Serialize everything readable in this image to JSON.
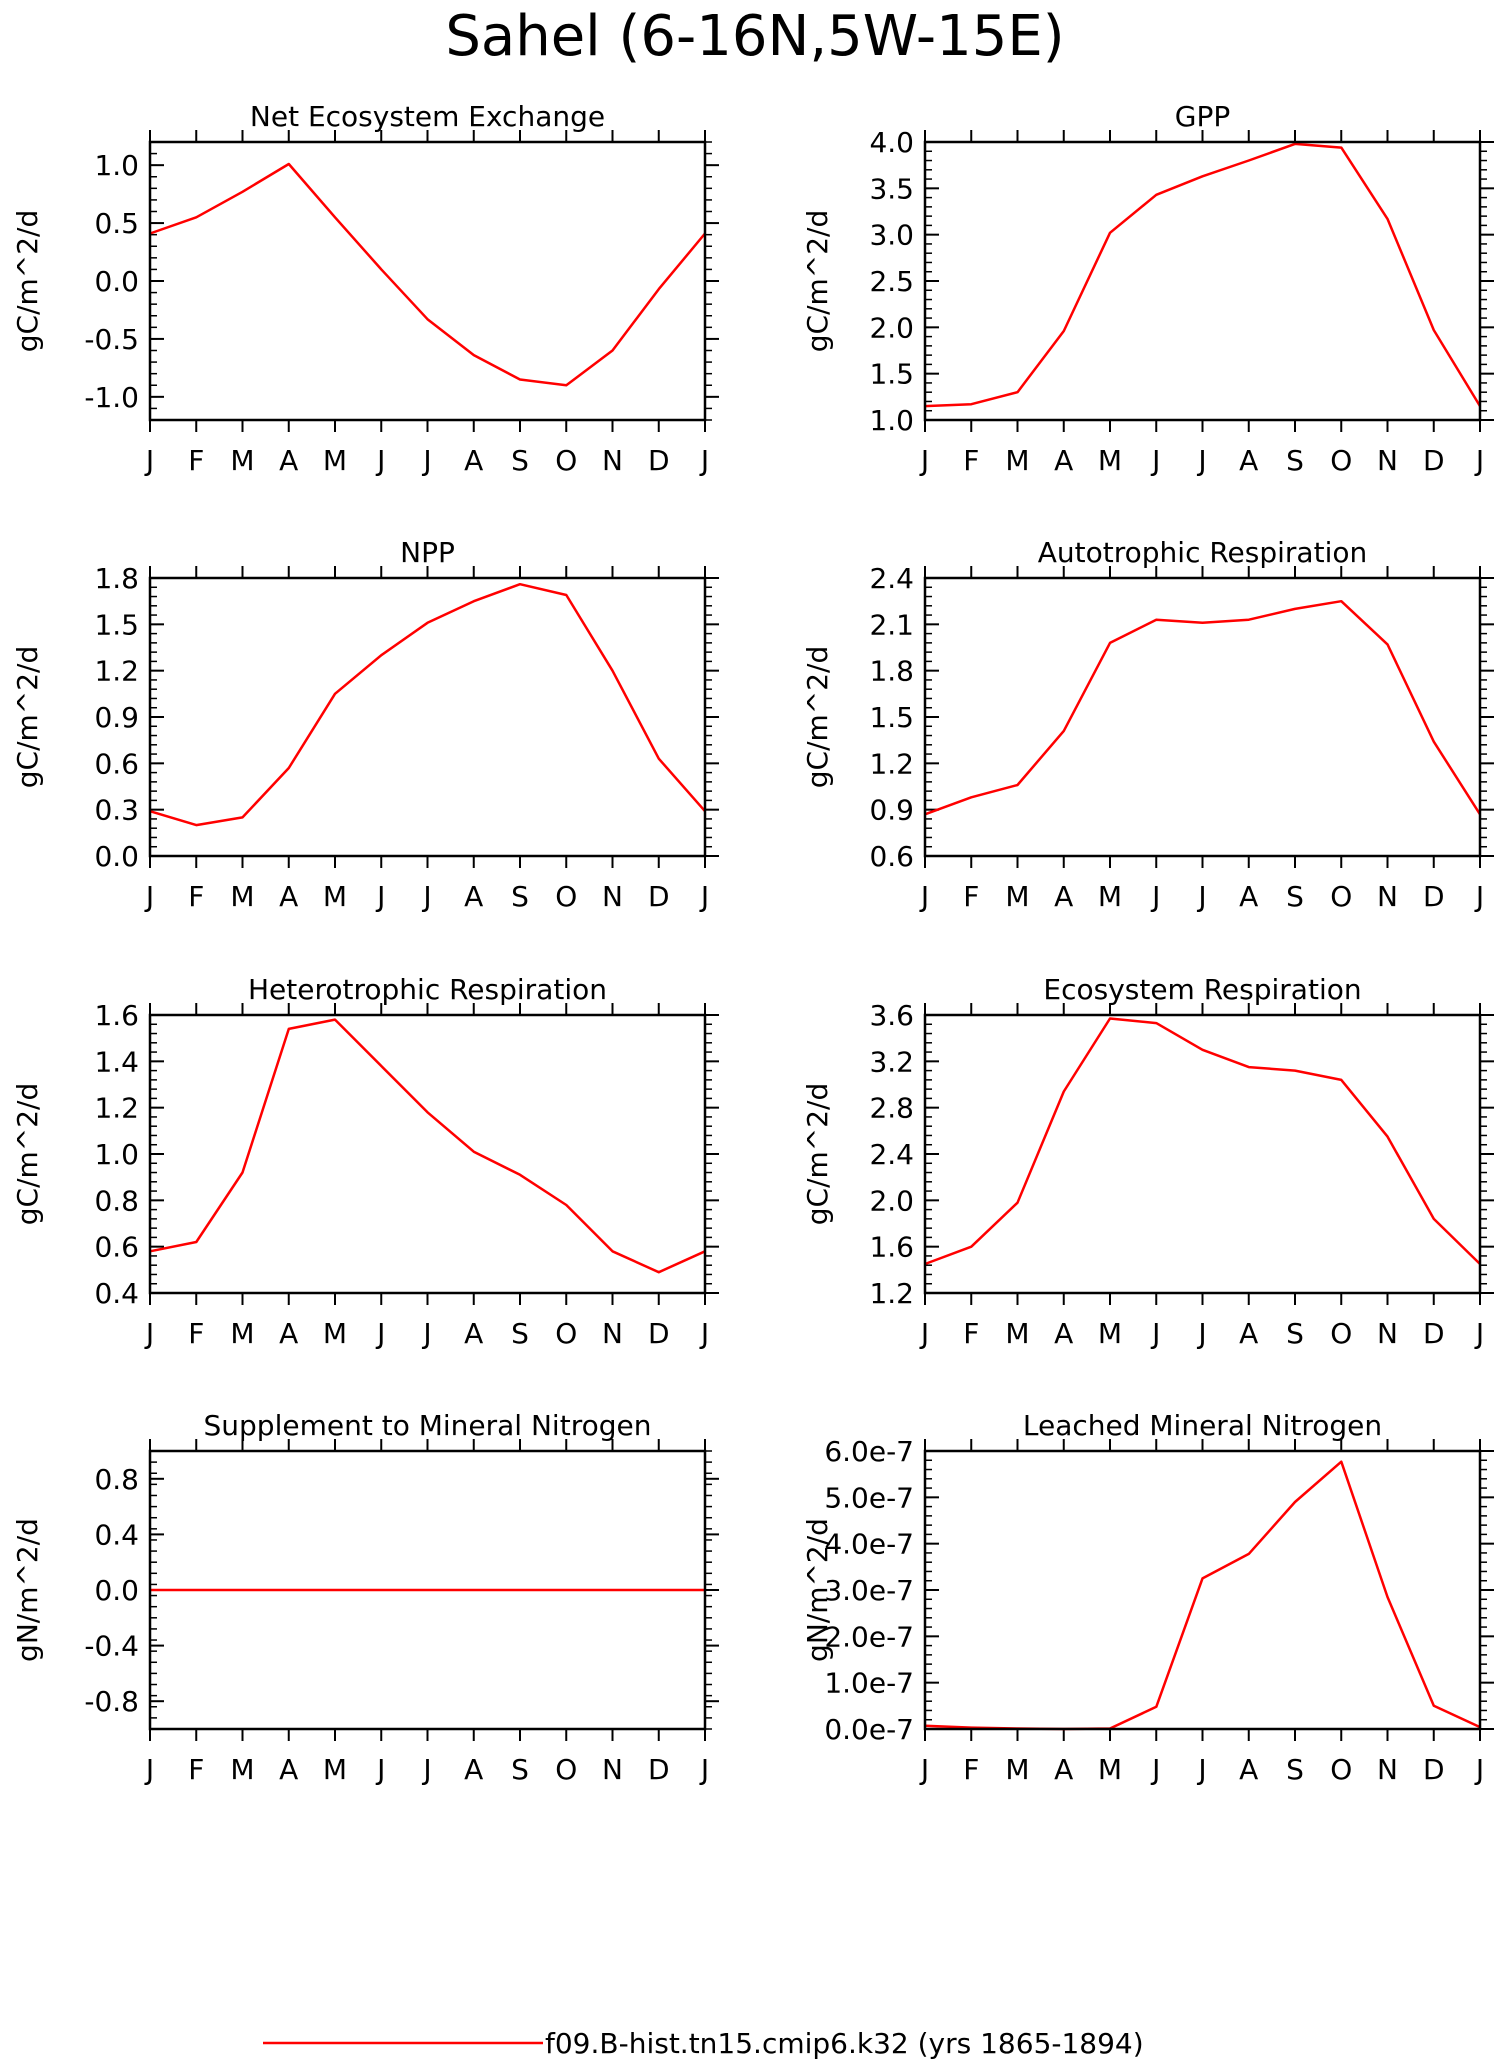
{
  "title": "Sahel (6-16N,5W-15E)",
  "legend": {
    "label": "f09.B-hist.tn15.cmip6.k32 (yrs 1865-1894)",
    "color": "#ff0000"
  },
  "chart_data": [
    {
      "type": "line",
      "title": "Net Ecosystem Exchange",
      "ylabel": "gC/m^2/d",
      "categories": [
        "J",
        "F",
        "M",
        "A",
        "M",
        "J",
        "J",
        "A",
        "S",
        "O",
        "N",
        "D",
        "J"
      ],
      "ylim": [
        -1.2,
        1.2
      ],
      "yticks": [
        "1.0",
        "0.5",
        "0.0",
        "-0.5",
        "-1.0"
      ],
      "ytick_values": [
        1.0,
        0.5,
        0.0,
        -0.5,
        -1.0
      ],
      "values": [
        0.41,
        0.55,
        0.77,
        1.01,
        0.55,
        0.1,
        -0.33,
        -0.64,
        -0.85,
        -0.9,
        -0.6,
        -0.07,
        0.41
      ]
    },
    {
      "type": "line",
      "title": "GPP",
      "ylabel": "gC/m^2/d",
      "categories": [
        "J",
        "F",
        "M",
        "A",
        "M",
        "J",
        "J",
        "A",
        "S",
        "O",
        "N",
        "D",
        "J"
      ],
      "ylim": [
        1.0,
        4.0
      ],
      "yticks": [
        "4.0",
        "3.5",
        "3.0",
        "2.5",
        "2.0",
        "1.5",
        "1.0"
      ],
      "ytick_values": [
        4.0,
        3.5,
        3.0,
        2.5,
        2.0,
        1.5,
        1.0
      ],
      "values": [
        1.15,
        1.17,
        1.3,
        1.96,
        3.02,
        3.43,
        3.63,
        3.8,
        3.98,
        3.94,
        3.17,
        1.97,
        1.15
      ]
    },
    {
      "type": "line",
      "title": "NPP",
      "ylabel": "gC/m^2/d",
      "categories": [
        "J",
        "F",
        "M",
        "A",
        "M",
        "J",
        "J",
        "A",
        "S",
        "O",
        "N",
        "D",
        "J"
      ],
      "ylim": [
        0.0,
        1.8
      ],
      "yticks": [
        "1.8",
        "1.5",
        "1.2",
        "0.9",
        "0.6",
        "0.3",
        "0.0"
      ],
      "ytick_values": [
        1.8,
        1.5,
        1.2,
        0.9,
        0.6,
        0.3,
        0.0
      ],
      "values": [
        0.29,
        0.2,
        0.25,
        0.57,
        1.05,
        1.3,
        1.51,
        1.65,
        1.76,
        1.69,
        1.2,
        0.63,
        0.29
      ]
    },
    {
      "type": "line",
      "title": "Autotrophic Respiration",
      "ylabel": "gC/m^2/d",
      "categories": [
        "J",
        "F",
        "M",
        "A",
        "M",
        "J",
        "J",
        "A",
        "S",
        "O",
        "N",
        "D",
        "J"
      ],
      "ylim": [
        0.6,
        2.4
      ],
      "yticks": [
        "2.4",
        "2.1",
        "1.8",
        "1.5",
        "1.2",
        "0.9",
        "0.6"
      ],
      "ytick_values": [
        2.4,
        2.1,
        1.8,
        1.5,
        1.2,
        0.9,
        0.6
      ],
      "values": [
        0.87,
        0.98,
        1.06,
        1.41,
        1.98,
        2.13,
        2.11,
        2.13,
        2.2,
        2.25,
        1.97,
        1.34,
        0.87
      ]
    },
    {
      "type": "line",
      "title": "Heterotrophic Respiration",
      "ylabel": "gC/m^2/d",
      "categories": [
        "J",
        "F",
        "M",
        "A",
        "M",
        "J",
        "J",
        "A",
        "S",
        "O",
        "N",
        "D",
        "J"
      ],
      "ylim": [
        0.4,
        1.6
      ],
      "yticks": [
        "1.6",
        "1.4",
        "1.2",
        "1.0",
        "0.8",
        "0.6",
        "0.4"
      ],
      "ytick_values": [
        1.6,
        1.4,
        1.2,
        1.0,
        0.8,
        0.6,
        0.4
      ],
      "values": [
        0.58,
        0.62,
        0.92,
        1.54,
        1.58,
        1.38,
        1.18,
        1.01,
        0.91,
        0.78,
        0.58,
        0.49,
        0.58
      ]
    },
    {
      "type": "line",
      "title": "Ecosystem Respiration",
      "ylabel": "gC/m^2/d",
      "categories": [
        "J",
        "F",
        "M",
        "A",
        "M",
        "J",
        "J",
        "A",
        "S",
        "O",
        "N",
        "D",
        "J"
      ],
      "ylim": [
        1.2,
        3.6
      ],
      "yticks": [
        "3.6",
        "3.2",
        "2.8",
        "2.4",
        "2.0",
        "1.6",
        "1.2"
      ],
      "ytick_values": [
        3.6,
        3.2,
        2.8,
        2.4,
        2.0,
        1.6,
        1.2
      ],
      "values": [
        1.45,
        1.6,
        1.98,
        2.94,
        3.57,
        3.53,
        3.3,
        3.15,
        3.12,
        3.04,
        2.55,
        1.84,
        1.45
      ]
    },
    {
      "type": "line",
      "title": "Supplement to Mineral Nitrogen",
      "ylabel": "gN/m^2/d",
      "categories": [
        "J",
        "F",
        "M",
        "A",
        "M",
        "J",
        "J",
        "A",
        "S",
        "O",
        "N",
        "D",
        "J"
      ],
      "ylim": [
        -1.0,
        1.0
      ],
      "yticks": [
        "0.8",
        "0.4",
        "0.0",
        "-0.4",
        "-0.8"
      ],
      "ytick_values": [
        0.8,
        0.4,
        0.0,
        -0.4,
        -0.8
      ],
      "values": [
        0,
        0,
        0,
        0,
        0,
        0,
        0,
        0,
        0,
        0,
        0,
        0,
        0
      ]
    },
    {
      "type": "line",
      "title": "Leached Mineral Nitrogen",
      "ylabel": "gN/m^2/d",
      "categories": [
        "J",
        "F",
        "M",
        "A",
        "M",
        "J",
        "J",
        "A",
        "S",
        "O",
        "N",
        "D",
        "J"
      ],
      "ylim": [
        0,
        6e-07
      ],
      "yticks": [
        "6.0e-7",
        "5.0e-7",
        "4.0e-7",
        "3.0e-7",
        "2.0e-7",
        "1.0e-7",
        "0.0e-7"
      ],
      "ytick_values": [
        6e-07,
        5e-07,
        4e-07,
        3e-07,
        2e-07,
        1e-07,
        0
      ],
      "values": [
        7e-09,
        3e-09,
        1e-09,
        0.0,
        1e-09,
        4.8e-08,
        3.25e-07,
        3.78e-07,
        4.9e-07,
        5.77e-07,
        2.85e-07,
        5e-08,
        4e-09
      ]
    }
  ]
}
